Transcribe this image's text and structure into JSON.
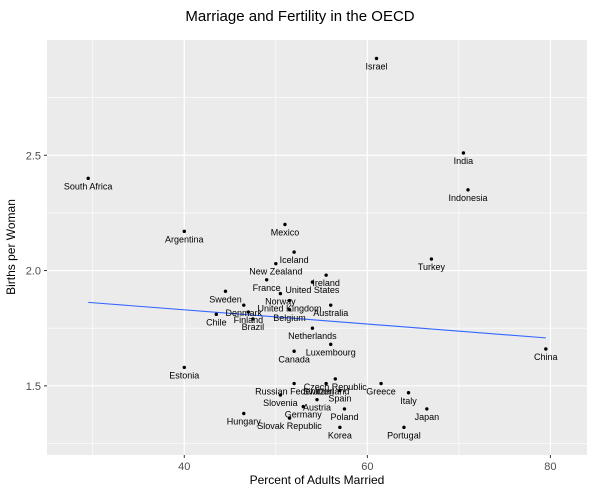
{
  "chart_data": {
    "type": "scatter",
    "title": "Marriage and Fertility in the OECD",
    "xlabel": "Percent of Adults Married",
    "ylabel": "Births per Woman",
    "xlim": [
      25,
      84
    ],
    "ylim": [
      1.2,
      3.0
    ],
    "grid": true,
    "legend": "none",
    "panel_bg": "#EBEBEB",
    "grid_color": "#FFFFFF",
    "point_color": "#000000",
    "label_color": "#000000",
    "tick_color": "#333333",
    "tick_label_color": "#4d4d4d",
    "x_ticks": [
      {
        "v": 40,
        "label": "40"
      },
      {
        "v": 60,
        "label": "60"
      },
      {
        "v": 80,
        "label": "80"
      }
    ],
    "y_ticks": [
      {
        "v": 1.5,
        "label": "1.5"
      },
      {
        "v": 2.0,
        "label": "2.0"
      },
      {
        "v": 2.5,
        "label": "2.5"
      }
    ],
    "x_minor": [
      30,
      50,
      70
    ],
    "y_minor": [
      1.25,
      1.75,
      2.25,
      2.75
    ],
    "trend": {
      "color": "#3366FF",
      "x1": 29.5,
      "y1": 1.862,
      "x2": 79.5,
      "y2": 1.708
    },
    "points": [
      {
        "name": "Israel",
        "x": 61,
        "y": 2.92
      },
      {
        "name": "India",
        "x": 70.5,
        "y": 2.51
      },
      {
        "name": "Indonesia",
        "x": 71,
        "y": 2.35
      },
      {
        "name": "South Africa",
        "x": 29.5,
        "y": 2.4
      },
      {
        "name": "Argentina",
        "x": 40,
        "y": 2.17
      },
      {
        "name": "Mexico",
        "x": 51,
        "y": 2.2
      },
      {
        "name": "Iceland",
        "x": 52,
        "y": 2.08
      },
      {
        "name": "New Zealand",
        "x": 50,
        "y": 2.03
      },
      {
        "name": "Turkey",
        "x": 67,
        "y": 2.05
      },
      {
        "name": "Ireland",
        "x": 55.5,
        "y": 1.98
      },
      {
        "name": "France",
        "x": 49,
        "y": 1.96
      },
      {
        "name": "United States",
        "x": 54,
        "y": 1.95
      },
      {
        "name": "Sweden",
        "x": 44.5,
        "y": 1.91
      },
      {
        "name": "Norway",
        "x": 50.5,
        "y": 1.9
      },
      {
        "name": "United Kingdom",
        "x": 51.5,
        "y": 1.87
      },
      {
        "name": "Denmark",
        "x": 46.5,
        "y": 1.85
      },
      {
        "name": "Australia",
        "x": 56,
        "y": 1.85
      },
      {
        "name": "Belgium",
        "x": 51.5,
        "y": 1.83
      },
      {
        "name": "Finland",
        "x": 47,
        "y": 1.82
      },
      {
        "name": "Chile",
        "x": 43.5,
        "y": 1.81
      },
      {
        "name": "Brazil",
        "x": 47.5,
        "y": 1.79
      },
      {
        "name": "Netherlands",
        "x": 54,
        "y": 1.75
      },
      {
        "name": "Luxembourg",
        "x": 56,
        "y": 1.68
      },
      {
        "name": "Canada",
        "x": 52,
        "y": 1.65
      },
      {
        "name": "China",
        "x": 79.5,
        "y": 1.66
      },
      {
        "name": "Estonia",
        "x": 40,
        "y": 1.58
      },
      {
        "name": "Czech Republic",
        "x": 56.5,
        "y": 1.53
      },
      {
        "name": "Russian Federation",
        "x": 52,
        "y": 1.51
      },
      {
        "name": "Switzerland",
        "x": 55.5,
        "y": 1.51
      },
      {
        "name": "Greece",
        "x": 61.5,
        "y": 1.51
      },
      {
        "name": "Spain",
        "x": 57,
        "y": 1.48
      },
      {
        "name": "Italy",
        "x": 64.5,
        "y": 1.47
      },
      {
        "name": "Slovenia",
        "x": 50.5,
        "y": 1.46
      },
      {
        "name": "Austria",
        "x": 54.5,
        "y": 1.44
      },
      {
        "name": "Germany",
        "x": 53,
        "y": 1.41
      },
      {
        "name": "Poland",
        "x": 57.5,
        "y": 1.4
      },
      {
        "name": "Japan",
        "x": 66.5,
        "y": 1.4
      },
      {
        "name": "Hungary",
        "x": 46.5,
        "y": 1.38
      },
      {
        "name": "Slovak Republic",
        "x": 51.5,
        "y": 1.36
      },
      {
        "name": "Korea",
        "x": 57,
        "y": 1.32
      },
      {
        "name": "Portugal",
        "x": 64,
        "y": 1.32
      }
    ]
  }
}
